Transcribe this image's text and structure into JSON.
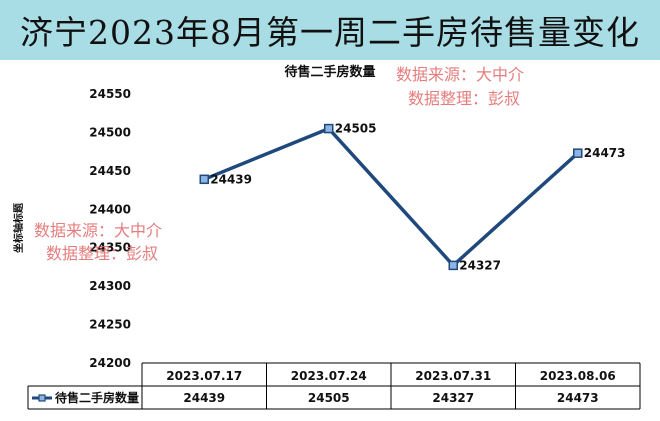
{
  "page": {
    "banner_title": "济宁2023年8月第一周二手房待售量变化",
    "watermark_lines": [
      "数据来源：大中介",
      "数据整理：彭叔"
    ]
  },
  "chart_data": {
    "type": "line",
    "title": "待售二手房数量",
    "ylabel": "坐标轴标题",
    "xlabel": "",
    "categories": [
      "2023.07.17",
      "2023.07.24",
      "2023.07.31",
      "2023.08.06"
    ],
    "series": [
      {
        "name": "待售二手房数量",
        "values": [
          24439,
          24505,
          24327,
          24473
        ]
      }
    ],
    "ylim": [
      24200,
      24550
    ],
    "yticks": [
      24200,
      24250,
      24300,
      24350,
      24400,
      24450,
      24500,
      24550
    ],
    "data_labels": [
      "24439",
      "24505",
      "24327",
      "24473"
    ],
    "data_table": true,
    "grid": false,
    "colors": {
      "line": "#1f497d",
      "marker_fill": "#8eb4e3",
      "watermark": "#e06666",
      "banner": "#a9dde6"
    }
  }
}
